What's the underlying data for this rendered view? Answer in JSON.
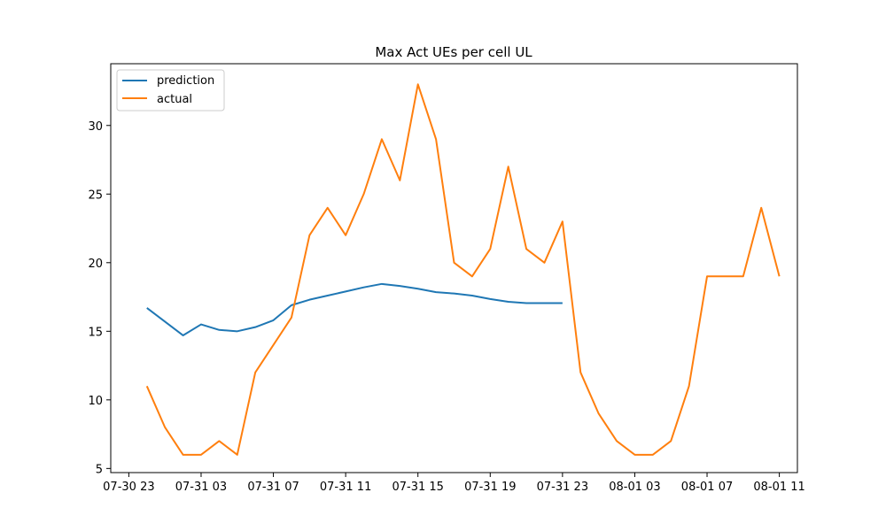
{
  "chart_data": {
    "type": "line",
    "title": "Max Act UEs per cell UL",
    "xlabel": "",
    "ylabel": "",
    "x_ticks": [
      "07-30 23",
      "07-31 03",
      "07-31 07",
      "07-31 11",
      "07-31 15",
      "07-31 19",
      "07-31 23",
      "08-01 03",
      "08-01 07",
      "08-01 11"
    ],
    "y_ticks": [
      "5",
      "10",
      "15",
      "20",
      "25",
      "30"
    ],
    "ylim": [
      4.7,
      34.5
    ],
    "xlim": [
      "07-30 22:00",
      "08-01 12:00"
    ],
    "grid": false,
    "legend": {
      "position": "top-left",
      "entries": [
        "prediction",
        "actual"
      ]
    },
    "series": [
      {
        "name": "prediction",
        "color": "#1f77b4",
        "x": [
          "07-31 00:00",
          "07-31 01:00",
          "07-31 02:00",
          "07-31 03:00",
          "07-31 04:00",
          "07-31 05:00",
          "07-31 06:00",
          "07-31 07:00",
          "07-31 08:00",
          "07-31 09:00",
          "07-31 10:00",
          "07-31 11:00",
          "07-31 12:00",
          "07-31 13:00",
          "07-31 14:00",
          "07-31 15:00",
          "07-31 16:00",
          "07-31 17:00",
          "07-31 18:00",
          "07-31 19:00",
          "07-31 20:00",
          "07-31 21:00",
          "07-31 22:00",
          "07-31 23:00"
        ],
        "values": [
          16.7,
          15.7,
          14.7,
          15.5,
          15.1,
          15.0,
          15.3,
          15.8,
          16.9,
          17.3,
          17.6,
          17.9,
          18.2,
          18.45,
          18.3,
          18.1,
          17.85,
          17.75,
          17.6,
          17.35,
          17.15,
          17.05,
          17.05,
          17.05
        ]
      },
      {
        "name": "actual",
        "color": "#ff7f0e",
        "x": [
          "07-31 00:00",
          "07-31 01:00",
          "07-31 02:00",
          "07-31 03:00",
          "07-31 04:00",
          "07-31 05:00",
          "07-31 06:00",
          "07-31 07:00",
          "07-31 08:00",
          "07-31 09:00",
          "07-31 10:00",
          "07-31 11:00",
          "07-31 12:00",
          "07-31 13:00",
          "07-31 14:00",
          "07-31 15:00",
          "07-31 16:00",
          "07-31 17:00",
          "07-31 18:00",
          "07-31 19:00",
          "07-31 20:00",
          "07-31 21:00",
          "07-31 22:00",
          "07-31 23:00",
          "08-01 00:00",
          "08-01 01:00",
          "08-01 02:00",
          "08-01 03:00",
          "08-01 04:00",
          "08-01 05:00",
          "08-01 06:00",
          "08-01 07:00",
          "08-01 08:00",
          "08-01 09:00",
          "08-01 10:00",
          "08-01 11:00"
        ],
        "values": [
          11,
          8,
          6,
          6,
          7,
          6,
          12,
          14,
          16,
          22,
          24,
          22,
          25,
          29,
          26,
          33,
          29,
          20,
          19,
          21,
          27,
          21,
          20,
          23,
          12,
          9,
          7,
          6,
          6,
          7,
          11,
          19,
          19,
          19,
          24,
          19
        ]
      }
    ]
  }
}
